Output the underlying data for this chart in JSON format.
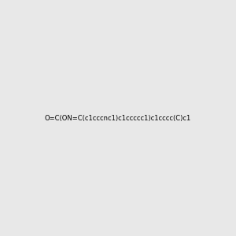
{
  "smiles": "O=C(ON=C(c1cccnc1)c1ccccc1)c1cccc(C)c1",
  "image_size": 300,
  "background_color": "#e8e8e8"
}
